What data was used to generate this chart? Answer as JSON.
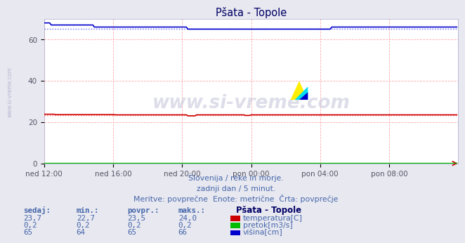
{
  "title": "Pšata - Topole",
  "bg_color": "#e8e8f0",
  "plot_bg_color": "#ffffff",
  "grid_color": "#ffaaaa",
  "xlabel_ticks": [
    "ned 12:00",
    "ned 16:00",
    "ned 20:00",
    "pon 00:00",
    "pon 04:00",
    "pon 08:00"
  ],
  "ylabel_ticks": [
    0,
    20,
    40,
    60
  ],
  "ylim": [
    0,
    70
  ],
  "xlim": [
    0,
    288
  ],
  "temp_color": "#cc0000",
  "pretok_color": "#00bb00",
  "visina_color": "#0000cc",
  "temp_avg_color": "#ff6666",
  "visina_avg_color": "#6666ff",
  "footer_line1": "Slovenija / reke in morje.",
  "footer_line2": "zadnji dan / 5 minut.",
  "footer_line3": "Meritve: povprečne  Enote: metrične  Črta: povprečje",
  "legend_title": "Pšata - Topole",
  "legend_labels": [
    "temperatura[C]",
    "pretok[m3/s]",
    "višina[cm]"
  ],
  "legend_colors": [
    "#cc0000",
    "#00bb00",
    "#0000cc"
  ],
  "table_headers": [
    "sedaj:",
    "min.:",
    "povpr.:",
    "maks.:"
  ],
  "table_rows": [
    [
      "23,7",
      "22,7",
      "23,5",
      "24,0"
    ],
    [
      "0,2",
      "0,2",
      "0,2",
      "0,2"
    ],
    [
      "65",
      "64",
      "65",
      "66"
    ]
  ],
  "watermark": "www.si-vreme.com",
  "side_label": "www.si-vreme.com",
  "n_points": 288,
  "temp_avg": 23.5,
  "visina_avg": 65.0,
  "pretok_avg": 0.2
}
